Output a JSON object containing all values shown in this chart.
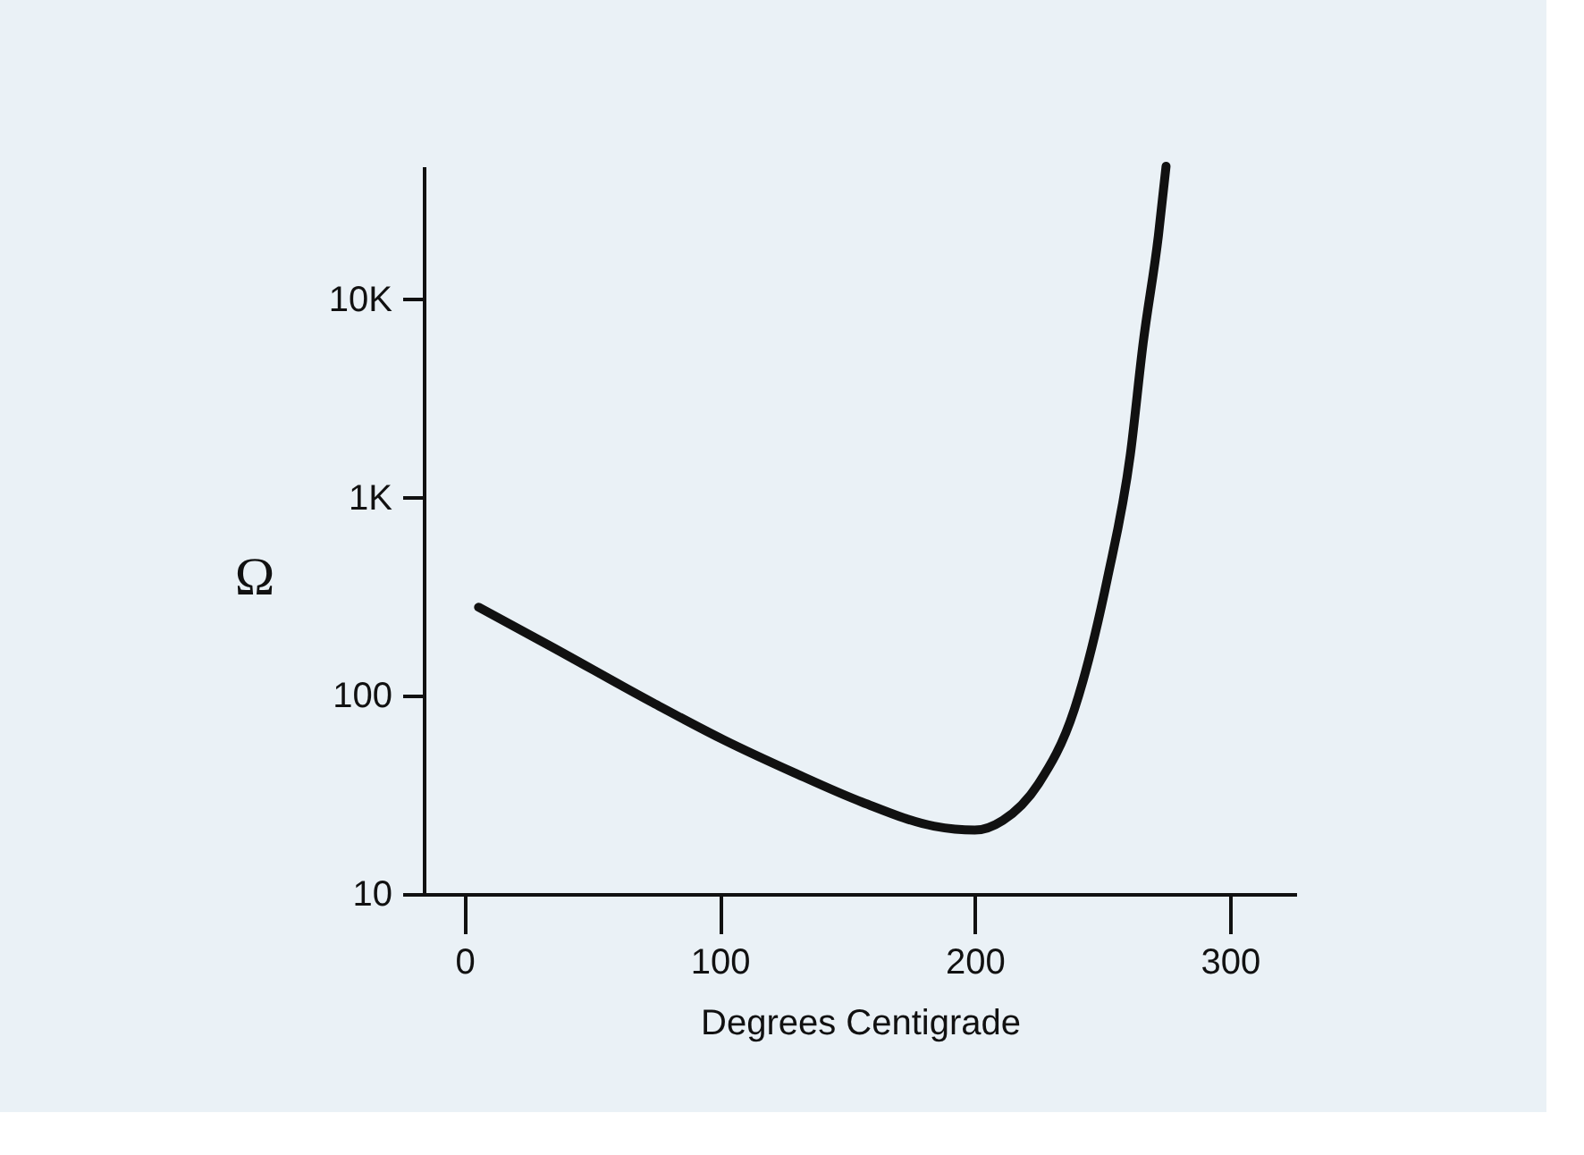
{
  "chart_data": {
    "type": "line",
    "xlabel": "Degrees Centigrade",
    "ylabel": "Ω",
    "log": "y",
    "grid": false,
    "marker": "none",
    "line_style": "solid",
    "xlim": [
      -16,
      326
    ],
    "xticks": [
      0,
      100,
      200,
      300
    ],
    "ylim": [
      10,
      47000
    ],
    "yticks": [
      10,
      100,
      {
        "value": 1000,
        "label": "1K"
      },
      {
        "value": 10000,
        "label": "10K"
      }
    ],
    "series": [
      {
        "color": "#111111",
        "x": [
          5.5,
          33,
          74,
          101.5,
          129,
          156,
          184,
          200,
          211,
          225,
          239,
          252,
          261,
          266,
          272,
          275
        ],
        "values": [
          280,
          180,
          92,
          60,
          41,
          29,
          22,
          21,
          23.5,
          36,
          85,
          390,
          1650,
          6000,
          21000,
          47000
        ]
      }
    ]
  }
}
